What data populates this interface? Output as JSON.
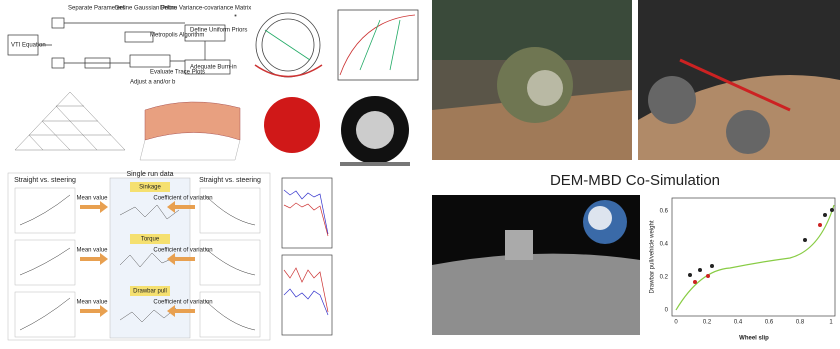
{
  "left_panel": {
    "flowchart": {
      "start": "VTI Equation",
      "steps": [
        "Separate Parameters",
        "Define Gaussian Priors",
        "Define Variance-covariance Matrix",
        "Metropolis Algorithm",
        "Define Uniform Priors",
        "Evaluate Trace Plots",
        "Adequate Burn-in",
        "Adjust a and/or b"
      ]
    },
    "workflow": {
      "left_title": "Straight vs. steering",
      "middle_title": "Single run data",
      "right_title": "Straight vs. steering",
      "left_label": "Mean value",
      "right_label": "Coefficient of variation",
      "measures": [
        "Sinkage",
        "Torque",
        "Drawbar pull"
      ]
    }
  },
  "right_panel": {
    "title": "DEM-MBD Co-Simulation",
    "plot": {
      "x_label": "Wheel slip",
      "y_label": "Drawbar pull/vehicle weight",
      "x_ticks": [
        "0",
        "0.2",
        "0.4",
        "0.6",
        "0.8",
        "1"
      ],
      "y_ticks": [
        "0",
        "0.2",
        "0.4",
        "0.6"
      ]
    }
  }
}
